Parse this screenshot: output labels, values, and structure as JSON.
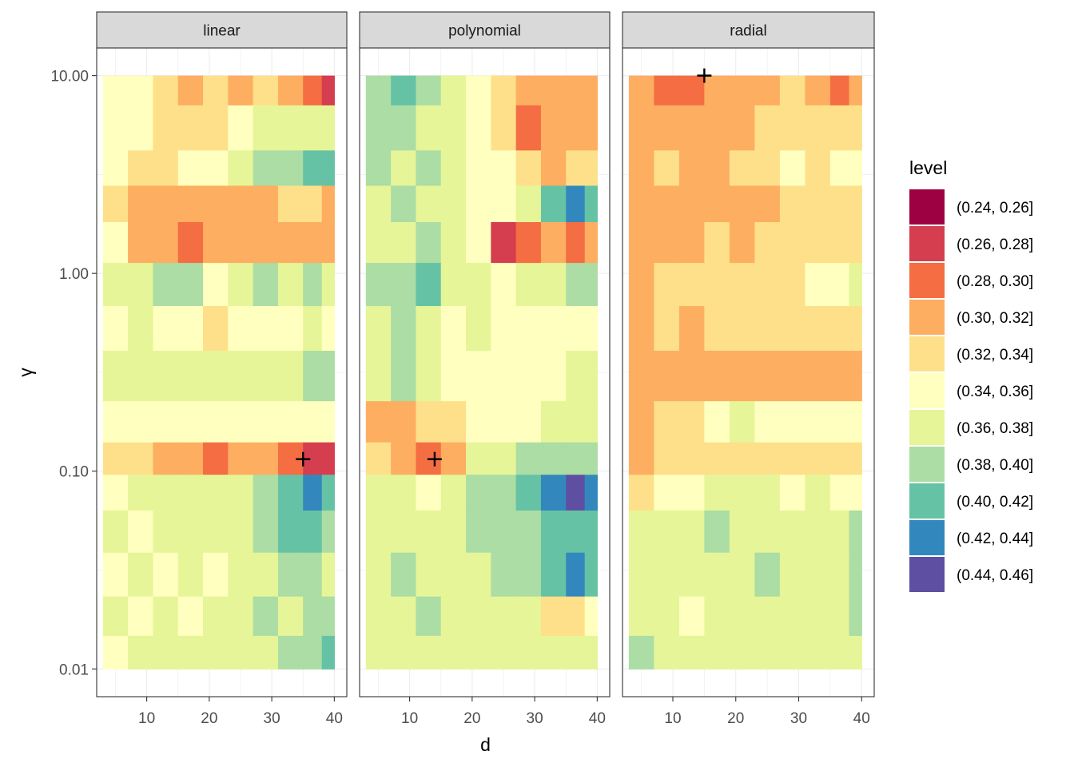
{
  "chart_data": {
    "type": "contour",
    "facet_by": "kernel",
    "facets": [
      {
        "label": "linear",
        "optimum": {
          "d": 35,
          "gamma": 0.115
        },
        "bands": [
          {
            "gamma": 10.0,
            "levels": [
              5,
              5,
              4,
              3,
              4,
              3,
              4,
              3,
              2,
              1
            ]
          },
          {
            "gamma": 5.0,
            "levels": [
              5,
              5,
              4,
              4,
              4,
              5,
              6,
              6,
              6,
              6
            ]
          },
          {
            "gamma": 3.5,
            "levels": [
              5,
              4,
              4,
              5,
              5,
              6,
              7,
              7,
              8,
              8
            ]
          },
          {
            "gamma": 2.2,
            "levels": [
              4,
              3,
              3,
              3,
              3,
              3,
              3,
              4,
              4,
              3
            ]
          },
          {
            "gamma": 1.5,
            "levels": [
              5,
              3,
              3,
              2,
              3,
              3,
              3,
              3,
              3,
              3
            ]
          },
          {
            "gamma": 0.85,
            "levels": [
              6,
              6,
              7,
              7,
              5,
              6,
              7,
              6,
              7,
              6
            ]
          },
          {
            "gamma": 0.55,
            "levels": [
              5,
              6,
              5,
              5,
              4,
              5,
              5,
              5,
              6,
              5
            ]
          },
          {
            "gamma": 0.3,
            "levels": [
              6,
              6,
              6,
              6,
              6,
              6,
              6,
              6,
              7,
              7
            ]
          },
          {
            "gamma": 0.17,
            "levels": [
              5,
              5,
              5,
              5,
              5,
              5,
              5,
              5,
              5,
              5
            ]
          },
          {
            "gamma": 0.115,
            "levels": [
              4,
              4,
              3,
              3,
              2,
              3,
              3,
              2,
              1,
              1
            ]
          },
          {
            "gamma": 0.08,
            "levels": [
              5,
              6,
              6,
              6,
              6,
              6,
              7,
              8,
              9,
              8
            ]
          },
          {
            "gamma": 0.05,
            "levels": [
              6,
              5,
              6,
              6,
              6,
              6,
              7,
              8,
              8,
              7
            ]
          },
          {
            "gamma": 0.03,
            "levels": [
              5,
              6,
              5,
              6,
              5,
              6,
              6,
              7,
              7,
              6
            ]
          },
          {
            "gamma": 0.018,
            "levels": [
              6,
              5,
              6,
              5,
              6,
              6,
              7,
              6,
              7,
              7
            ]
          },
          {
            "gamma": 0.012,
            "levels": [
              5,
              6,
              6,
              6,
              6,
              6,
              6,
              7,
              7,
              8
            ]
          }
        ]
      },
      {
        "label": "polynomial",
        "optimum": {
          "d": 14,
          "gamma": 0.115
        },
        "bands": [
          {
            "gamma": 10.0,
            "levels": [
              7,
              8,
              7,
              6,
              5,
              4,
              3,
              3,
              3,
              3
            ]
          },
          {
            "gamma": 5.0,
            "levels": [
              7,
              7,
              6,
              6,
              5,
              4,
              2,
              3,
              3,
              3
            ]
          },
          {
            "gamma": 3.5,
            "levels": [
              7,
              6,
              7,
              6,
              5,
              5,
              4,
              3,
              4,
              4
            ]
          },
          {
            "gamma": 2.2,
            "levels": [
              6,
              7,
              6,
              6,
              5,
              5,
              6,
              8,
              9,
              8
            ]
          },
          {
            "gamma": 1.5,
            "levels": [
              6,
              6,
              7,
              6,
              5,
              1,
              2,
              3,
              2,
              3
            ]
          },
          {
            "gamma": 0.85,
            "levels": [
              7,
              7,
              8,
              6,
              6,
              5,
              6,
              6,
              7,
              7
            ]
          },
          {
            "gamma": 0.55,
            "levels": [
              6,
              7,
              6,
              5,
              6,
              5,
              5,
              5,
              5,
              5
            ]
          },
          {
            "gamma": 0.3,
            "levels": [
              6,
              7,
              6,
              5,
              5,
              5,
              5,
              5,
              6,
              6
            ]
          },
          {
            "gamma": 0.17,
            "levels": [
              3,
              3,
              4,
              4,
              5,
              5,
              5,
              6,
              6,
              6
            ]
          },
          {
            "gamma": 0.115,
            "levels": [
              4,
              3,
              2,
              3,
              6,
              6,
              7,
              7,
              7,
              7
            ]
          },
          {
            "gamma": 0.08,
            "levels": [
              6,
              6,
              5,
              6,
              7,
              7,
              8,
              9,
              10,
              9
            ]
          },
          {
            "gamma": 0.05,
            "levels": [
              6,
              6,
              6,
              6,
              7,
              7,
              7,
              8,
              8,
              8
            ]
          },
          {
            "gamma": 0.03,
            "levels": [
              6,
              7,
              6,
              6,
              6,
              7,
              7,
              8,
              9,
              8
            ]
          },
          {
            "gamma": 0.018,
            "levels": [
              6,
              6,
              7,
              6,
              6,
              6,
              6,
              4,
              4,
              5
            ]
          },
          {
            "gamma": 0.012,
            "levels": [
              6,
              6,
              6,
              6,
              6,
              6,
              6,
              6,
              6,
              6
            ]
          }
        ]
      },
      {
        "label": "radial",
        "optimum": {
          "d": 15,
          "gamma": 10.0
        },
        "bands": [
          {
            "gamma": 10.0,
            "levels": [
              3,
              2,
              2,
              3,
              3,
              3,
              4,
              3,
              2,
              3
            ]
          },
          {
            "gamma": 5.0,
            "levels": [
              3,
              3,
              3,
              3,
              3,
              4,
              4,
              4,
              4,
              4
            ]
          },
          {
            "gamma": 3.5,
            "levels": [
              3,
              4,
              3,
              3,
              4,
              4,
              5,
              4,
              5,
              5
            ]
          },
          {
            "gamma": 2.2,
            "levels": [
              3,
              3,
              3,
              3,
              3,
              3,
              4,
              4,
              4,
              4
            ]
          },
          {
            "gamma": 1.5,
            "levels": [
              3,
              3,
              3,
              4,
              3,
              4,
              4,
              4,
              4,
              4
            ]
          },
          {
            "gamma": 0.85,
            "levels": [
              3,
              4,
              4,
              4,
              4,
              4,
              4,
              5,
              5,
              6
            ]
          },
          {
            "gamma": 0.55,
            "levels": [
              3,
              4,
              3,
              4,
              4,
              4,
              4,
              4,
              4,
              4
            ]
          },
          {
            "gamma": 0.3,
            "levels": [
              3,
              3,
              3,
              3,
              3,
              3,
              3,
              3,
              3,
              3
            ]
          },
          {
            "gamma": 0.17,
            "levels": [
              3,
              4,
              4,
              5,
              6,
              5,
              5,
              5,
              5,
              5
            ]
          },
          {
            "gamma": 0.115,
            "levels": [
              3,
              4,
              4,
              4,
              4,
              4,
              4,
              4,
              4,
              4
            ]
          },
          {
            "gamma": 0.08,
            "levels": [
              4,
              5,
              5,
              6,
              6,
              6,
              5,
              6,
              5,
              5
            ]
          },
          {
            "gamma": 0.05,
            "levels": [
              6,
              6,
              6,
              7,
              6,
              6,
              6,
              6,
              6,
              7
            ]
          },
          {
            "gamma": 0.03,
            "levels": [
              6,
              6,
              6,
              6,
              6,
              7,
              6,
              6,
              6,
              7
            ]
          },
          {
            "gamma": 0.018,
            "levels": [
              6,
              6,
              5,
              6,
              6,
              6,
              6,
              6,
              6,
              7
            ]
          },
          {
            "gamma": 0.012,
            "levels": [
              7,
              6,
              6,
              6,
              6,
              6,
              6,
              6,
              6,
              6
            ]
          }
        ]
      }
    ],
    "x": {
      "label": "d",
      "range": [
        2,
        42
      ],
      "ticks": [
        10,
        20,
        30,
        40
      ],
      "data_range": [
        3,
        40
      ],
      "columns": [
        5,
        9,
        13,
        17,
        21,
        25,
        29,
        33,
        37,
        39
      ]
    },
    "y": {
      "label": "γ",
      "scale": "log10",
      "range": [
        0.00724,
        13.8
      ],
      "ticks": [
        10.0,
        1.0,
        0.1,
        0.01
      ],
      "tick_labels": [
        "10.00",
        "1.00",
        "0.10",
        "0.01"
      ],
      "data_range": [
        0.01,
        10.0
      ]
    },
    "legend": {
      "title": "level",
      "position": "right",
      "items": [
        {
          "label": "(0.24, 0.26]",
          "color": "#9E0142"
        },
        {
          "label": "(0.26, 0.28]",
          "color": "#D53E4F"
        },
        {
          "label": "(0.28, 0.30]",
          "color": "#F46D43"
        },
        {
          "label": "(0.30, 0.32]",
          "color": "#FDAE61"
        },
        {
          "label": "(0.32, 0.34]",
          "color": "#FEE08B"
        },
        {
          "label": "(0.34, 0.36]",
          "color": "#FFFFBF"
        },
        {
          "label": "(0.36, 0.38]",
          "color": "#E6F598"
        },
        {
          "label": "(0.38, 0.40]",
          "color": "#ABDDA4"
        },
        {
          "label": "(0.40, 0.42]",
          "color": "#66C2A5"
        },
        {
          "label": "(0.42, 0.44]",
          "color": "#3288BD"
        },
        {
          "label": "(0.44, 0.46]",
          "color": "#5E4FA2"
        }
      ]
    },
    "optimum_marker": "+"
  }
}
